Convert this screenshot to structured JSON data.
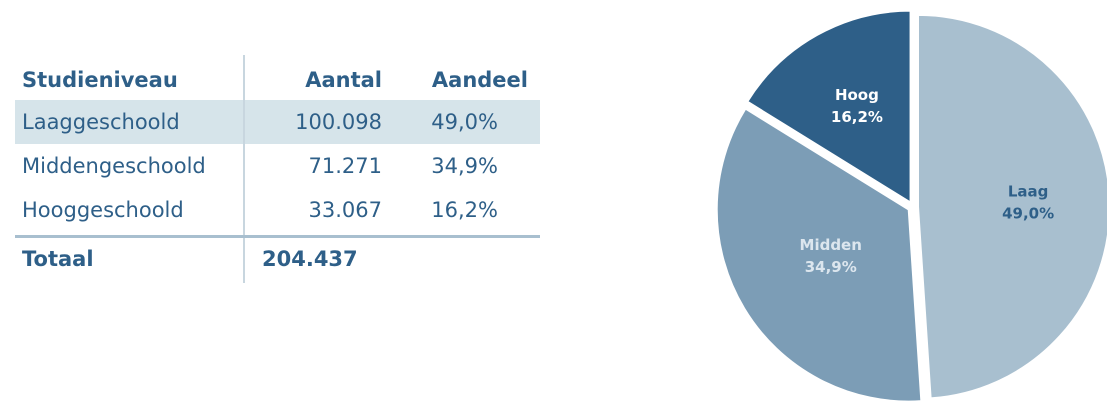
{
  "table": {
    "header": [
      "Studieniveau",
      "Aantal",
      "Aandeel"
    ],
    "rows": [
      [
        "Laaggeschoold",
        "100.098",
        "49,0%"
      ],
      [
        "Middengeschoold",
        "71.271",
        "34,9%"
      ],
      [
        "Hooggeschoold",
        "33.067",
        "16,2%"
      ]
    ],
    "total": [
      "Totaal",
      "204.437"
    ]
  },
  "chart_data": {
    "type": "pie",
    "categories": [
      "Laag",
      "Midden",
      "Hoog"
    ],
    "values": [
      49.0,
      34.9,
      16.2
    ],
    "value_labels": [
      "49,0%",
      "34,9%",
      "16,2%"
    ],
    "colors": [
      "#a8bfcf",
      "#7c9db6",
      "#2e5f88"
    ],
    "label_colors": [
      "#2e5f88",
      "#dce6ee",
      "#ffffff"
    ]
  }
}
